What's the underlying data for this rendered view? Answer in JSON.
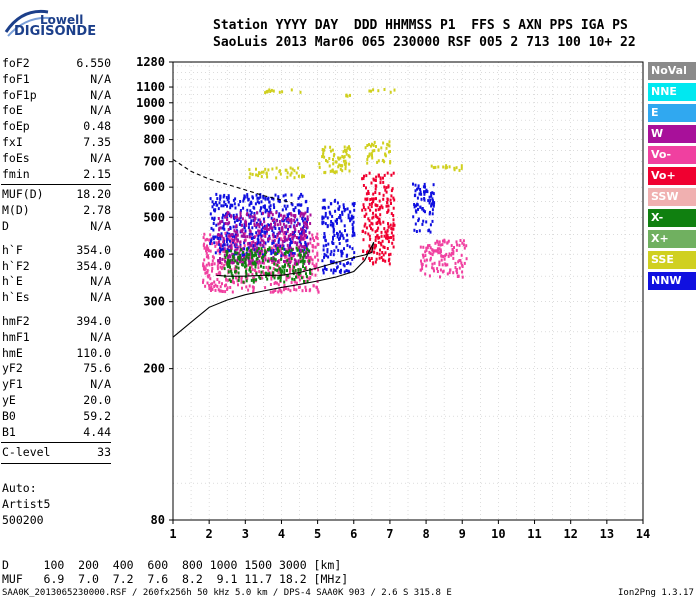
{
  "logo": {
    "line1": "Lowell",
    "line2": "DIGISONDE"
  },
  "header": {
    "row1": "Station YYYY DAY  DDD HHMMSS P1  FFS S AXN PPS IGA PS",
    "row2": "SaoLuis 2013 Mar06 065 230000 RSF 005 2 713 100 10+ 22"
  },
  "params_group1": [
    {
      "name": "foF2",
      "value": "6.550"
    },
    {
      "name": "foF1",
      "value": "N/A"
    },
    {
      "name": "foF1p",
      "value": "N/A"
    },
    {
      "name": "foE",
      "value": "N/A"
    },
    {
      "name": "foEp",
      "value": "0.48"
    },
    {
      "name": "fxI",
      "value": "7.35"
    },
    {
      "name": "foEs",
      "value": "N/A"
    },
    {
      "name": "fmin",
      "value": "2.15"
    }
  ],
  "params_group2": [
    {
      "name": "MUF(D)",
      "value": "18.20"
    },
    {
      "name": "M(D)",
      "value": "2.78"
    },
    {
      "name": "D",
      "value": "N/A"
    }
  ],
  "params_group3": [
    {
      "name": "h`F",
      "value": "354.0"
    },
    {
      "name": "h`F2",
      "value": "354.0"
    },
    {
      "name": "h`E",
      "value": "N/A"
    },
    {
      "name": "h`Es",
      "value": "N/A"
    }
  ],
  "params_group4": [
    {
      "name": "hmF2",
      "value": "394.0"
    },
    {
      "name": "hmF1",
      "value": "N/A"
    },
    {
      "name": "hmE",
      "value": "110.0"
    },
    {
      "name": "yF2",
      "value": "75.6"
    },
    {
      "name": "yF1",
      "value": "N/A"
    },
    {
      "name": "yE",
      "value": "20.0"
    },
    {
      "name": "B0",
      "value": "59.2"
    },
    {
      "name": "B1",
      "value": "4.44"
    }
  ],
  "params_group5": [
    {
      "name": "C-level",
      "value": "33"
    }
  ],
  "auto": {
    "line1": "Auto:",
    "line2": "Artist5",
    "line3": "500200"
  },
  "legend": [
    {
      "label": "NoVal",
      "color": "#8a8a8a"
    },
    {
      "label": "NNE",
      "color": "#00e8f0"
    },
    {
      "label": "E",
      "color": "#30a8f0"
    },
    {
      "label": "W",
      "color": "#a8109a"
    },
    {
      "label": "Vo-",
      "color": "#f040a0"
    },
    {
      "label": "Vo+",
      "color": "#f00030"
    },
    {
      "label": "SSW",
      "color": "#f0b0b0"
    },
    {
      "label": "X-",
      "color": "#108010"
    },
    {
      "label": "X+",
      "color": "#70b060"
    },
    {
      "label": "SSE",
      "color": "#d0d020"
    },
    {
      "label": "NNW",
      "color": "#1010e0"
    }
  ],
  "footer": {
    "d_row": "D     100  200  400  600  800 1000 1500 3000 [km]",
    "muf_row": "MUF   6.9  7.0  7.2  7.6  8.2  9.1 11.7 18.2 [MHz]",
    "info": "SAA0K_2013065230000.RSF / 260fx256h 50 kHz 5.0 km / DPS-4 SAA0K 903 / 2.6 S 315.8 E",
    "version": "Ion2Png 1.3.17"
  },
  "chart_data": {
    "type": "scatter",
    "title": "",
    "xlabel": "",
    "ylabel": "",
    "xlim": [
      1,
      14
    ],
    "ylim": [
      80,
      1280
    ],
    "y_scale": "log",
    "x_ticks": [
      "1",
      "2",
      "3",
      "4",
      "5",
      "6",
      "7",
      "8",
      "9",
      "10",
      "11",
      "12",
      "13",
      "14"
    ],
    "y_ticks": [
      "80",
      "200",
      "300",
      "400",
      "500",
      "600",
      "700",
      "800",
      "900",
      "1000",
      "1100",
      "1280"
    ],
    "grid": true,
    "legend_position": "right",
    "traces": [
      {
        "name": "F2 trace",
        "x": [
          1.0,
          1.5,
          2.0,
          2.5,
          3.0,
          3.5,
          4.0,
          4.5,
          5.0,
          5.5,
          6.0,
          6.3,
          6.55
        ],
        "y": [
          242,
          265,
          290,
          303,
          313,
          320,
          327,
          333,
          340,
          348,
          360,
          385,
          430
        ]
      },
      {
        "name": "profile",
        "x": [
          6.55,
          6.5,
          6.3,
          6.0,
          5.5,
          5.0,
          4.5,
          4.0,
          3.5,
          3.0,
          2.5,
          2.2
        ],
        "y": [
          430,
          404,
          398,
          392,
          380,
          368,
          358,
          352,
          352,
          350,
          350,
          352
        ]
      },
      {
        "name": "MUF",
        "x": [
          1.0,
          1.5,
          2.0,
          2.5,
          3.0,
          3.5,
          4.0,
          4.3
        ],
        "y": [
          710,
          660,
          630,
          610,
          590,
          570,
          555,
          545
        ]
      }
    ],
    "clusters": [
      {
        "name": "SSE",
        "x_range": [
          3.0,
          4.6
        ],
        "y_range": [
          640,
          680
        ]
      },
      {
        "name": "SSE",
        "x_range": [
          5.0,
          5.9
        ],
        "y_range": [
          660,
          780
        ]
      },
      {
        "name": "SSE",
        "x_range": [
          6.3,
          7.0
        ],
        "y_range": [
          700,
          800
        ]
      },
      {
        "name": "SSE",
        "x_range": [
          7.8,
          9.0
        ],
        "y_range": [
          670,
          690
        ]
      },
      {
        "name": "SSE",
        "x_range": [
          3.5,
          4.5
        ],
        "y_range": [
          1070,
          1100
        ]
      },
      {
        "name": "SSE",
        "x_range": [
          5.4,
          5.9
        ],
        "y_range": [
          1040,
          1060
        ]
      },
      {
        "name": "SSE",
        "x_range": [
          6.4,
          7.1
        ],
        "y_range": [
          1070,
          1100
        ]
      },
      {
        "name": "Vo+",
        "x_range": [
          6.2,
          7.1
        ],
        "y_range": [
          380,
          660
        ]
      },
      {
        "name": "Vo-",
        "x_range": [
          1.8,
          5.0
        ],
        "y_range": [
          320,
          460
        ]
      },
      {
        "name": "NNW",
        "x_range": [
          2.0,
          4.7
        ],
        "y_range": [
          400,
          580
        ]
      },
      {
        "name": "NNW",
        "x_range": [
          5.1,
          6.0
        ],
        "y_range": [
          360,
          560
        ]
      },
      {
        "name": "W",
        "x_range": [
          2.2,
          4.8
        ],
        "y_range": [
          380,
          520
        ]
      },
      {
        "name": "X-",
        "x_range": [
          2.4,
          4.8
        ],
        "y_range": [
          340,
          420
        ]
      },
      {
        "name": "Vo-",
        "x_range": [
          7.8,
          9.1
        ],
        "y_range": [
          350,
          440
        ]
      },
      {
        "name": "NNW",
        "x_range": [
          7.6,
          8.2
        ],
        "y_range": [
          460,
          620
        ]
      }
    ]
  }
}
